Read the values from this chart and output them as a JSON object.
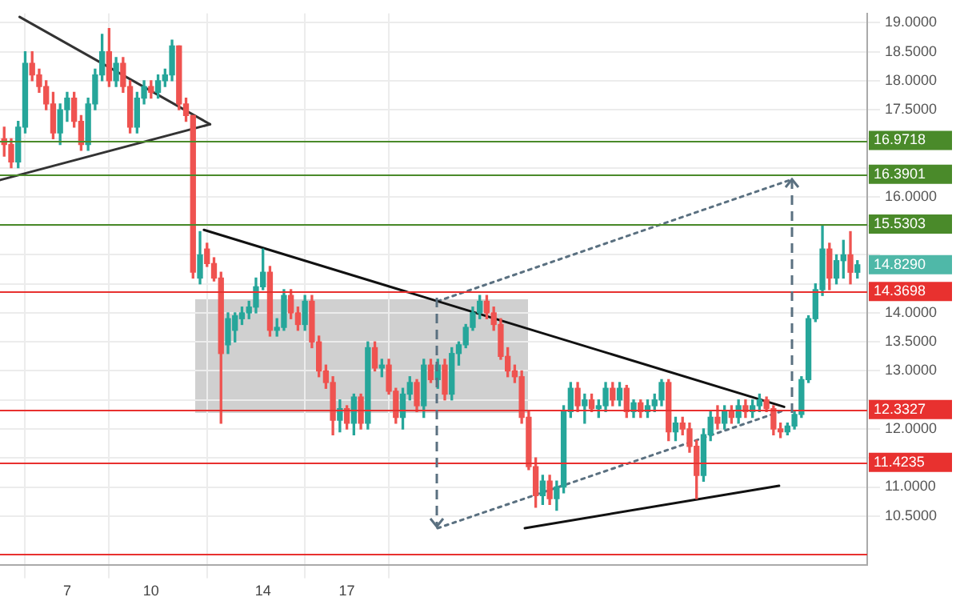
{
  "chart_data": {
    "type": "candlestick",
    "x": [
      4.75,
      5,
      5.25,
      5.5,
      5.75,
      6,
      6.25,
      6.5,
      6.75,
      7,
      7.25,
      7.5,
      7.75,
      8,
      8.25,
      8.5,
      8.75,
      9,
      9.25,
      9.5,
      9.75,
      10,
      10.25,
      10.5,
      10.75,
      11,
      11.25,
      11.5,
      11.75,
      12,
      12.25,
      12.5,
      12.75,
      13,
      13.25,
      13.5,
      13.75,
      14,
      14.25,
      14.5,
      14.75,
      15,
      15.25,
      15.5,
      15.75,
      16,
      16.25,
      16.5,
      16.75,
      17,
      17.25,
      17.5,
      17.75,
      18,
      18.25,
      18.5,
      18.75,
      19,
      19.25,
      19.5,
      19.75,
      20,
      20.25,
      20.5,
      20.75,
      21,
      21.25,
      21.5,
      21.75,
      22,
      22.25,
      22.5,
      22.75,
      23,
      23.25,
      23.5,
      23.75,
      24,
      24.25,
      24.5,
      24.75,
      25,
      25.25,
      25.5,
      25.75,
      26,
      26.25,
      26.5,
      26.75,
      27,
      27.25,
      27.5,
      27.75,
      28,
      28.25,
      28.5,
      28.75,
      29,
      29.25,
      29.5,
      29.75,
      30,
      30.25,
      30.5,
      30.75,
      31,
      31.25,
      31.5,
      31.75,
      32,
      32.25,
      32.5,
      32.75,
      33,
      33.25,
      33.5,
      33.75,
      34,
      34.25,
      34.5,
      34.75,
      35,
      35.25
    ],
    "ohlc": [
      [
        17.0,
        17.2,
        16.7,
        16.9
      ],
      [
        16.9,
        17.0,
        16.5,
        16.6
      ],
      [
        16.6,
        17.3,
        16.5,
        17.2
      ],
      [
        17.2,
        18.5,
        17.1,
        18.3
      ],
      [
        18.3,
        18.5,
        18.0,
        18.1
      ],
      [
        18.1,
        18.2,
        17.8,
        17.9
      ],
      [
        17.9,
        18.0,
        17.5,
        17.6
      ],
      [
        17.6,
        17.8,
        17.0,
        17.1
      ],
      [
        17.1,
        17.6,
        16.9,
        17.5
      ],
      [
        17.5,
        17.8,
        17.3,
        17.7
      ],
      [
        17.7,
        17.8,
        17.2,
        17.3
      ],
      [
        17.3,
        17.4,
        16.8,
        16.9
      ],
      [
        16.9,
        17.7,
        16.8,
        17.6
      ],
      [
        17.6,
        18.2,
        17.5,
        18.1
      ],
      [
        18.1,
        18.8,
        18.0,
        18.5
      ],
      [
        18.5,
        18.9,
        17.9,
        18.0
      ],
      [
        18.0,
        18.4,
        17.9,
        18.3
      ],
      [
        18.3,
        18.4,
        17.8,
        17.9
      ],
      [
        17.9,
        18.0,
        17.1,
        17.2
      ],
      [
        17.2,
        17.8,
        17.1,
        17.7
      ],
      [
        17.7,
        18.0,
        17.6,
        17.9
      ],
      [
        17.9,
        18.0,
        17.7,
        17.8
      ],
      [
        17.8,
        18.1,
        17.7,
        18.0
      ],
      [
        18.0,
        18.2,
        17.9,
        18.1
      ],
      [
        18.1,
        18.7,
        18.0,
        18.6
      ],
      [
        18.6,
        18.6,
        17.5,
        17.6
      ],
      [
        17.6,
        17.7,
        17.3,
        17.4
      ],
      [
        17.4,
        17.4,
        14.6,
        14.7
      ],
      [
        14.6,
        15.4,
        14.5,
        15.0
      ],
      [
        15.1,
        15.2,
        14.8,
        14.85
      ],
      [
        14.85,
        14.95,
        14.55,
        14.6
      ],
      [
        14.6,
        14.7,
        12.1,
        13.3
      ],
      [
        13.45,
        14.0,
        13.3,
        13.9
      ],
      [
        13.7,
        14.0,
        13.5,
        13.95
      ],
      [
        13.9,
        14.1,
        13.8,
        14.0
      ],
      [
        14.0,
        14.2,
        13.9,
        14.1
      ],
      [
        14.1,
        14.6,
        14.0,
        14.45
      ],
      [
        14.45,
        15.1,
        14.4,
        14.7
      ],
      [
        14.7,
        14.8,
        13.6,
        13.7
      ],
      [
        13.7,
        13.9,
        13.6,
        13.75
      ],
      [
        13.75,
        14.4,
        13.7,
        14.3
      ],
      [
        14.3,
        14.4,
        13.9,
        14.0
      ],
      [
        14.0,
        14.1,
        13.7,
        13.8
      ],
      [
        13.8,
        14.3,
        13.7,
        14.2
      ],
      [
        14.2,
        14.3,
        13.4,
        13.5
      ],
      [
        13.5,
        13.6,
        12.9,
        13.0
      ],
      [
        13.0,
        13.1,
        12.7,
        12.8
      ],
      [
        12.8,
        12.9,
        11.9,
        12.15
      ],
      [
        12.15,
        12.5,
        11.95,
        12.35
      ],
      [
        12.35,
        12.4,
        12.0,
        12.1
      ],
      [
        12.1,
        12.6,
        11.9,
        12.55
      ],
      [
        12.55,
        12.6,
        12.0,
        12.1
      ],
      [
        12.1,
        13.5,
        12.0,
        13.4
      ],
      [
        13.4,
        13.5,
        13.0,
        13.05
      ],
      [
        13.05,
        13.2,
        12.9,
        13.1
      ],
      [
        13.1,
        13.2,
        12.6,
        12.65
      ],
      [
        12.65,
        12.7,
        12.1,
        12.2
      ],
      [
        12.2,
        12.7,
        12.0,
        12.6
      ],
      [
        12.6,
        12.9,
        12.5,
        12.8
      ],
      [
        12.8,
        12.85,
        12.3,
        12.4
      ],
      [
        12.4,
        13.2,
        12.2,
        13.1
      ],
      [
        13.1,
        13.2,
        12.8,
        12.85
      ],
      [
        12.85,
        13.2,
        12.7,
        13.1
      ],
      [
        13.1,
        13.2,
        12.5,
        12.6
      ],
      [
        12.6,
        13.4,
        12.5,
        13.3
      ],
      [
        13.3,
        13.5,
        13.1,
        13.45
      ],
      [
        13.45,
        13.8,
        13.4,
        13.75
      ],
      [
        13.75,
        14.1,
        13.7,
        14.0
      ],
      [
        14.0,
        14.3,
        13.9,
        14.2
      ],
      [
        14.2,
        14.3,
        13.9,
        14.0
      ],
      [
        14.0,
        14.1,
        13.7,
        13.8
      ],
      [
        13.8,
        13.9,
        13.2,
        13.25
      ],
      [
        13.25,
        13.4,
        12.9,
        13.0
      ],
      [
        13.0,
        13.1,
        12.8,
        12.9
      ],
      [
        12.9,
        13.0,
        12.1,
        12.2
      ],
      [
        12.2,
        12.3,
        11.3,
        11.35
      ],
      [
        11.35,
        11.5,
        10.65,
        10.85
      ],
      [
        10.85,
        11.2,
        10.7,
        11.1
      ],
      [
        11.1,
        11.2,
        10.7,
        10.8
      ],
      [
        10.8,
        11.1,
        10.6,
        11.0
      ],
      [
        11.0,
        12.4,
        10.9,
        12.3
      ],
      [
        12.3,
        12.8,
        12.2,
        12.7
      ],
      [
        12.7,
        12.8,
        12.3,
        12.4
      ],
      [
        12.4,
        12.6,
        12.1,
        12.5
      ],
      [
        12.5,
        12.6,
        12.3,
        12.35
      ],
      [
        12.35,
        12.5,
        12.2,
        12.4
      ],
      [
        12.4,
        12.8,
        12.3,
        12.7
      ],
      [
        12.7,
        12.8,
        12.4,
        12.5
      ],
      [
        12.5,
        12.8,
        12.4,
        12.7
      ],
      [
        12.7,
        12.75,
        12.2,
        12.3
      ],
      [
        12.3,
        12.5,
        12.2,
        12.45
      ],
      [
        12.45,
        12.5,
        12.2,
        12.3
      ],
      [
        12.3,
        12.5,
        12.2,
        12.4
      ],
      [
        12.4,
        12.6,
        12.3,
        12.5
      ],
      [
        12.5,
        12.85,
        12.4,
        12.8
      ],
      [
        12.8,
        12.85,
        11.8,
        11.95
      ],
      [
        11.95,
        12.2,
        11.8,
        12.1
      ],
      [
        12.1,
        12.2,
        11.9,
        12.0
      ],
      [
        12.0,
        12.1,
        11.6,
        11.7
      ],
      [
        11.7,
        11.8,
        10.8,
        11.2
      ],
      [
        11.2,
        12.0,
        11.1,
        11.9
      ],
      [
        11.9,
        12.3,
        11.8,
        12.2
      ],
      [
        12.2,
        12.4,
        12.0,
        12.1
      ],
      [
        12.1,
        12.4,
        12.0,
        12.3
      ],
      [
        12.3,
        12.4,
        12.1,
        12.2
      ],
      [
        12.2,
        12.5,
        12.1,
        12.4
      ],
      [
        12.4,
        12.5,
        12.2,
        12.3
      ],
      [
        12.3,
        12.5,
        12.2,
        12.4
      ],
      [
        12.4,
        12.6,
        12.3,
        12.5
      ],
      [
        12.5,
        12.55,
        12.3,
        12.35
      ],
      [
        12.35,
        12.4,
        11.9,
        12.0
      ],
      [
        12.0,
        12.1,
        11.85,
        11.95
      ],
      [
        11.95,
        12.1,
        11.9,
        12.05
      ],
      [
        12.05,
        12.3,
        12.0,
        12.25
      ],
      [
        12.25,
        12.9,
        12.2,
        12.85
      ],
      [
        12.85,
        13.95,
        12.8,
        13.9
      ],
      [
        13.9,
        14.5,
        13.85,
        14.4
      ],
      [
        14.4,
        15.5,
        14.3,
        15.1
      ],
      [
        15.1,
        15.2,
        14.4,
        14.6
      ],
      [
        14.6,
        15.0,
        14.5,
        14.9
      ],
      [
        14.9,
        15.25,
        14.6,
        15.0
      ],
      [
        15.0,
        15.4,
        14.5,
        14.7
      ],
      [
        14.7,
        14.9,
        14.6,
        14.829
      ]
    ],
    "series": [
      {
        "type": "line",
        "x": [
          5.3,
          12.11
        ],
        "values": [
          19.1,
          17.25
        ],
        "color": "#333333",
        "line_style": "solid"
      },
      {
        "type": "line",
        "x": [
          4.61,
          12.11
        ],
        "values": [
          16.29,
          17.25
        ],
        "color": "#333333",
        "line_style": "solid"
      },
      {
        "type": "line",
        "x": [
          11.89,
          32.63
        ],
        "values": [
          15.43,
          12.38
        ],
        "color": "#111111",
        "line_style": "solid"
      },
      {
        "type": "line",
        "x": [
          23.36,
          32.45
        ],
        "values": [
          10.29,
          11.02
        ],
        "color": "#111111",
        "line_style": "solid"
      },
      {
        "type": "line",
        "x": [
          20.24,
          32.85
        ],
        "values": [
          14.2,
          16.29
        ],
        "color": "#5a7080",
        "line_style": "dotted"
      },
      {
        "type": "line",
        "x": [
          20.24,
          32.63
        ],
        "values": [
          10.29,
          12.32
        ],
        "color": "#5a7080",
        "line_style": "dotted"
      }
    ],
    "xlim": [
      4.6,
      35.6
    ],
    "xticks": [
      7,
      10,
      14,
      17
    ],
    "ylim": [
      9.65,
      19.16
    ],
    "yticks": [
      {
        "value": 10.5,
        "label": "10.5000"
      },
      {
        "value": 11,
        "label": "11.0000"
      },
      {
        "value": 11.5,
        "label": null
      },
      {
        "value": 12,
        "label": "12.0000"
      },
      {
        "value": 12.5,
        "label": null
      },
      {
        "value": 13,
        "label": "13.0000"
      },
      {
        "value": 13.5,
        "label": "13.5000"
      },
      {
        "value": 14,
        "label": "14.0000"
      },
      {
        "value": 14.5,
        "label": null
      },
      {
        "value": 15,
        "label": null
      },
      {
        "value": 15.5,
        "label": null
      },
      {
        "value": 16,
        "label": "16.0000"
      },
      {
        "value": 16.5,
        "label": null
      },
      {
        "value": 17,
        "label": null
      },
      {
        "value": 17.5,
        "label": "17.5000"
      },
      {
        "value": 18,
        "label": "18.0000"
      },
      {
        "value": 18.5,
        "label": "18.5000"
      },
      {
        "value": 19,
        "label": "19.0000"
      }
    ],
    "ref_lines": [
      {
        "axis": "y",
        "value": 16.9718,
        "label": "16.9718",
        "color": "#4a8a2a"
      },
      {
        "axis": "y",
        "value": 16.3901,
        "label": "16.3901",
        "color": "#4a8a2a"
      },
      {
        "axis": "y",
        "value": 15.5303,
        "label": "15.5303",
        "color": "#4a8a2a"
      },
      {
        "axis": "y",
        "value": 14.3698,
        "label": "14.3698",
        "color": "#e8312f"
      },
      {
        "axis": "y",
        "value": 12.3327,
        "label": "12.3327",
        "color": "#e8312f"
      },
      {
        "axis": "y",
        "value": 11.4235,
        "label": "11.4235",
        "color": "#e8312f"
      },
      {
        "axis": "y",
        "value": 9.85,
        "label": null,
        "color": "#e8312f"
      }
    ],
    "annotations": [
      "14.8290"
    ],
    "grid": true,
    "legend": false
  }
}
